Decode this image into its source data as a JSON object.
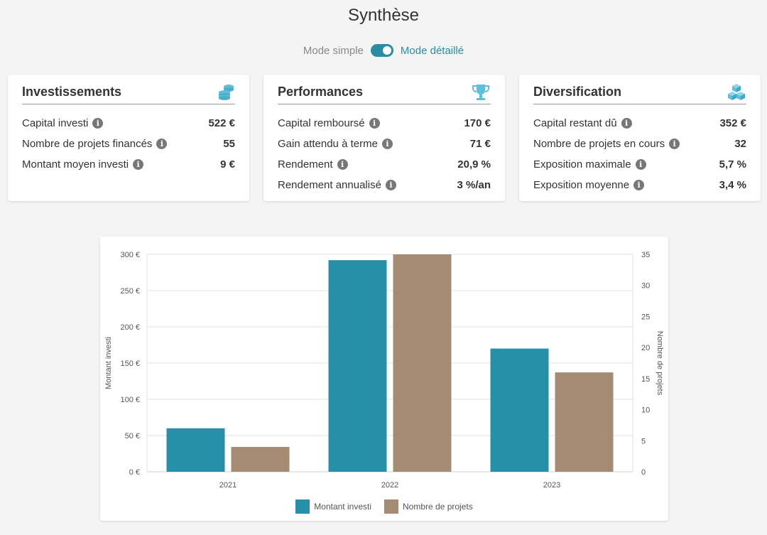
{
  "header": {
    "title": "Synthèse"
  },
  "mode": {
    "simple_label": "Mode simple",
    "detail_label": "Mode détaillé",
    "detailed_on": true
  },
  "colors": {
    "accent": "#2a8ca3",
    "series1": "#2590a8",
    "series2": "#a68b73",
    "icon": "#5bc0de"
  },
  "cards": [
    {
      "title": "Investissements",
      "icon": "coins-icon",
      "rows": [
        {
          "label": "Capital investi",
          "value": "522 €"
        },
        {
          "label": "Nombre de projets financés",
          "value": "55"
        },
        {
          "label": "Montant moyen investi",
          "value": "9 €"
        }
      ]
    },
    {
      "title": "Performances",
      "icon": "trophy-icon",
      "rows": [
        {
          "label": "Capital remboursé",
          "value": "170 €"
        },
        {
          "label": "Gain attendu à terme",
          "value": "71 €"
        },
        {
          "label": "Rendement",
          "value": "20,9 %"
        },
        {
          "label": "Rendement annualisé",
          "value": "3 %/an"
        }
      ]
    },
    {
      "title": "Diversification",
      "icon": "cubes-icon",
      "rows": [
        {
          "label": "Capital restant dû",
          "value": "352 €"
        },
        {
          "label": "Nombre de projets en cours",
          "value": "32"
        },
        {
          "label": "Exposition maximale",
          "value": "5,7 %"
        },
        {
          "label": "Exposition moyenne",
          "value": "3,4 %"
        }
      ]
    }
  ],
  "chart_data": {
    "type": "bar",
    "categories": [
      "2021",
      "2022",
      "2023"
    ],
    "series": [
      {
        "name": "Montant investi",
        "values": [
          60,
          292,
          170
        ],
        "axis": "left"
      },
      {
        "name": "Nombre de projets",
        "values": [
          4,
          35,
          16
        ],
        "axis": "right"
      }
    ],
    "ylabel": "Montant investi",
    "y2label": "Nombre de projets",
    "ylim": [
      0,
      300
    ],
    "y2lim": [
      0,
      35
    ],
    "yticks": [
      "0 €",
      "50 €",
      "100 €",
      "150 €",
      "200 €",
      "250 €",
      "300 €"
    ],
    "y2ticks": [
      "0",
      "5",
      "10",
      "15",
      "20",
      "25",
      "30",
      "35"
    ],
    "grid": true,
    "legend": "bottom"
  }
}
